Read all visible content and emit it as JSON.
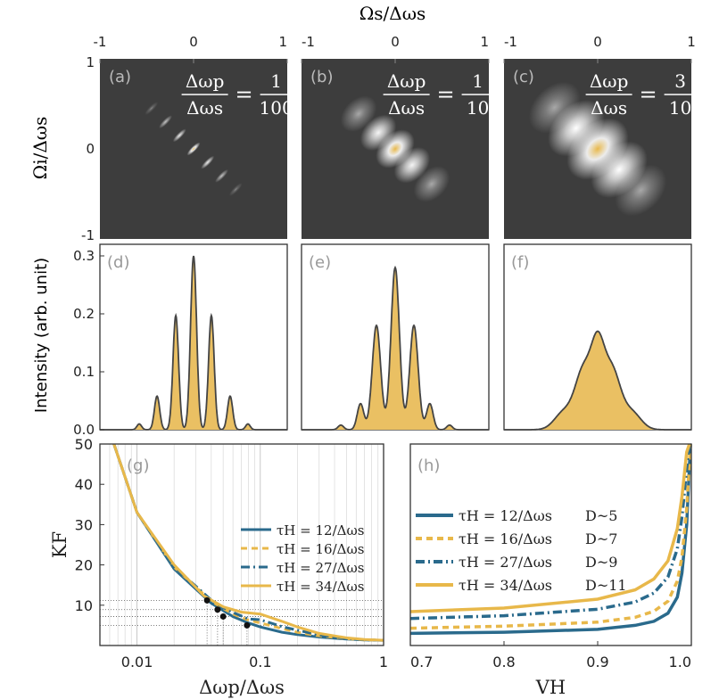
{
  "figure": {
    "top_axis_label": "Ωs/Δωs",
    "left_axis_label": "Ωi/Δωs",
    "intensity_axis_label": "Intensity (arb. unit)"
  },
  "chart_data": [
    {
      "type": "heatmap",
      "panel": "(a)",
      "annotation": "Δωp/Δωs = 1/100",
      "ratio_label": {
        "num": "Δωp",
        "den": "Δωs",
        "value_num": "1",
        "value_den": "100"
      },
      "xlim": [
        -1,
        1
      ],
      "ylim": [
        -1,
        1
      ],
      "x_ticks": [
        "-1",
        "0",
        "1"
      ],
      "y_ticks": [
        "1",
        "0",
        "-1"
      ],
      "background": "#3d3d3d",
      "lobes": [
        {
          "x": -0.45,
          "y": 0.45,
          "w": 0.03,
          "peak": 0.2
        },
        {
          "x": -0.3,
          "y": 0.3,
          "w": 0.03,
          "peak": 0.5
        },
        {
          "x": -0.15,
          "y": 0.15,
          "w": 0.03,
          "peak": 0.7
        },
        {
          "x": 0.0,
          "y": 0.0,
          "w": 0.03,
          "peak": 1.0
        },
        {
          "x": 0.15,
          "y": -0.15,
          "w": 0.03,
          "peak": 0.7
        },
        {
          "x": 0.3,
          "y": -0.3,
          "w": 0.03,
          "peak": 0.5
        },
        {
          "x": 0.45,
          "y": -0.45,
          "w": 0.03,
          "peak": 0.2
        }
      ]
    },
    {
      "type": "heatmap",
      "panel": "(b)",
      "annotation": "Δωp/Δωs = 1/10",
      "ratio_label": {
        "num": "Δωp",
        "den": "Δωs",
        "value_num": "1",
        "value_den": "10"
      },
      "xlim": [
        -1,
        1
      ],
      "ylim": [
        -1,
        1
      ],
      "x_ticks": [
        "-1",
        "0",
        "1"
      ],
      "y_ticks": [],
      "background": "#3d3d3d",
      "lobes": [
        {
          "x": -0.39,
          "y": 0.39,
          "w": 0.07,
          "peak": 0.35
        },
        {
          "x": -0.18,
          "y": 0.18,
          "w": 0.07,
          "peak": 0.75
        },
        {
          "x": 0.0,
          "y": 0.0,
          "w": 0.075,
          "peak": 1.0
        },
        {
          "x": 0.18,
          "y": -0.18,
          "w": 0.07,
          "peak": 0.75
        },
        {
          "x": 0.39,
          "y": -0.39,
          "w": 0.07,
          "peak": 0.35
        }
      ]
    },
    {
      "type": "heatmap",
      "panel": "(c)",
      "annotation": "Δωp/Δωs = 3/10",
      "ratio_label": {
        "num": "Δωp",
        "den": "Δωs",
        "value_num": "3",
        "value_den": "10"
      },
      "xlim": [
        -1,
        1
      ],
      "ylim": [
        -1,
        1
      ],
      "x_ticks": [
        "-1",
        "0",
        "1"
      ],
      "y_ticks": [],
      "background": "#3d3d3d",
      "lobes": [
        {
          "x": -0.46,
          "y": 0.46,
          "w": 0.1,
          "peak": 0.35
        },
        {
          "x": -0.23,
          "y": 0.23,
          "w": 0.11,
          "peak": 0.8
        },
        {
          "x": 0.0,
          "y": 0.0,
          "w": 0.12,
          "peak": 1.0
        },
        {
          "x": 0.23,
          "y": -0.23,
          "w": 0.11,
          "peak": 0.8
        },
        {
          "x": 0.46,
          "y": -0.46,
          "w": 0.1,
          "peak": 0.35
        }
      ]
    },
    {
      "type": "area",
      "panel": "(d)",
      "xlim": [
        -1,
        1
      ],
      "ylim": [
        0,
        0.32
      ],
      "y_ticks": [
        0.0,
        0.1,
        0.2,
        0.3
      ],
      "ylabel": "Intensity (arb. unit)",
      "peaks": [
        {
          "x": -0.58,
          "y": 0.01,
          "w": 0.025
        },
        {
          "x": -0.39,
          "y": 0.058,
          "w": 0.028
        },
        {
          "x": -0.19,
          "y": 0.197,
          "w": 0.03
        },
        {
          "x": 0.0,
          "y": 0.3,
          "w": 0.032
        },
        {
          "x": 0.19,
          "y": 0.197,
          "w": 0.03
        },
        {
          "x": 0.39,
          "y": 0.058,
          "w": 0.028
        },
        {
          "x": 0.58,
          "y": 0.01,
          "w": 0.025
        }
      ]
    },
    {
      "type": "area",
      "panel": "(e)",
      "xlim": [
        -1,
        1
      ],
      "ylim": [
        0,
        0.32
      ],
      "peaks": [
        {
          "x": -0.58,
          "y": 0.008,
          "w": 0.03
        },
        {
          "x": -0.37,
          "y": 0.045,
          "w": 0.035
        },
        {
          "x": -0.2,
          "y": 0.18,
          "w": 0.045
        },
        {
          "x": 0.0,
          "y": 0.28,
          "w": 0.045
        },
        {
          "x": 0.2,
          "y": 0.18,
          "w": 0.045
        },
        {
          "x": 0.37,
          "y": 0.045,
          "w": 0.035
        },
        {
          "x": 0.58,
          "y": 0.008,
          "w": 0.03
        }
      ]
    },
    {
      "type": "area",
      "panel": "(f)",
      "xlim": [
        -1,
        1
      ],
      "ylim": [
        0,
        0.32
      ],
      "peaks": [
        {
          "x": -0.36,
          "y": 0.03,
          "w": 0.1
        },
        {
          "x": -0.15,
          "y": 0.1,
          "w": 0.09
        },
        {
          "x": 0.0,
          "y": 0.12,
          "w": 0.07
        },
        {
          "x": 0.15,
          "y": 0.1,
          "w": 0.09
        },
        {
          "x": 0.36,
          "y": 0.03,
          "w": 0.1
        }
      ]
    },
    {
      "type": "line",
      "panel": "(g)",
      "xlabel": "Δωp/Δωs",
      "ylabel": "KF",
      "xscale": "log",
      "xlim": [
        0.005,
        1
      ],
      "ylim": [
        0,
        50
      ],
      "x_ticks": [
        0.01,
        0.1,
        1
      ],
      "x_tick_labels": [
        "0.01",
        "0.1",
        "1"
      ],
      "y_ticks": [
        10,
        20,
        30,
        40,
        50
      ],
      "legend": "right",
      "series": [
        {
          "name": "τH = 12/Δωs",
          "color": "#2a6a8c",
          "dash": "solid",
          "x": [
            0.0065,
            0.01,
            0.02,
            0.04,
            0.06,
            0.08,
            0.1,
            0.15,
            0.2,
            0.3,
            0.5,
            0.7,
            1.0
          ],
          "y": [
            50,
            33,
            19,
            10.5,
            7.2,
            5.6,
            4.6,
            3.3,
            2.7,
            2.1,
            1.6,
            1.4,
            1.3
          ]
        },
        {
          "name": "τH = 16/Δωs",
          "color": "#e8b84a",
          "dash": "dashed",
          "x": [
            0.0065,
            0.01,
            0.02,
            0.04,
            0.06,
            0.08,
            0.1,
            0.15,
            0.2,
            0.3,
            0.5,
            0.7,
            1.0
          ],
          "y": [
            50,
            33,
            19.5,
            11,
            7.8,
            6.3,
            5.6,
            4.2,
            3.3,
            2.4,
            1.7,
            1.4,
            1.3
          ]
        },
        {
          "name": "τH = 27/Δωs",
          "color": "#2a6a8c",
          "dash": "dashdot",
          "x": [
            0.0065,
            0.01,
            0.02,
            0.04,
            0.05,
            0.06,
            0.08,
            0.1,
            0.15,
            0.2,
            0.3,
            0.5,
            0.7,
            1.0
          ],
          "y": [
            50,
            33,
            19.5,
            11.3,
            9.4,
            8.2,
            6.6,
            6.4,
            4.7,
            3.8,
            2.6,
            1.8,
            1.4,
            1.3
          ]
        },
        {
          "name": "τH = 34/Δωs",
          "color": "#e8b84a",
          "dash": "solid",
          "x": [
            0.0065,
            0.01,
            0.02,
            0.035,
            0.05,
            0.07,
            0.1,
            0.15,
            0.2,
            0.3,
            0.5,
            0.7,
            1.0
          ],
          "y": [
            50,
            33,
            20,
            12.3,
            9.6,
            8.3,
            7.8,
            6.0,
            4.6,
            3.0,
            1.9,
            1.5,
            1.3
          ]
        }
      ],
      "markers": [
        {
          "x": 0.037,
          "y": 11.2
        },
        {
          "x": 0.045,
          "y": 8.9
        },
        {
          "x": 0.05,
          "y": 7.2
        },
        {
          "x": 0.078,
          "y": 5.0
        }
      ]
    },
    {
      "type": "line",
      "panel": "(h)",
      "xlabel": "VH",
      "xlim": [
        0.7,
        1.0
      ],
      "ylim": [
        0,
        50
      ],
      "x_ticks": [
        0.7,
        0.8,
        0.9,
        1.0
      ],
      "x_tick_labels": [
        "0.7",
        "0.8",
        "0.9",
        "1.0"
      ],
      "legend": "left",
      "series": [
        {
          "name": "τH = 12/Δωs",
          "extra": "D~5",
          "color": "#2a6a8c",
          "dash": "solid",
          "x": [
            0.7,
            0.8,
            0.9,
            0.94,
            0.96,
            0.975,
            0.985,
            0.99,
            0.995,
            0.999
          ],
          "y": [
            3.0,
            3.3,
            4.0,
            5.0,
            6.0,
            8.0,
            12.0,
            18.0,
            30.0,
            50.0
          ]
        },
        {
          "name": "τH = 16/Δωs",
          "extra": "D~7",
          "color": "#e8b84a",
          "dash": "dashed",
          "x": [
            0.7,
            0.8,
            0.9,
            0.94,
            0.96,
            0.975,
            0.985,
            0.99,
            0.995,
            0.999
          ],
          "y": [
            4.3,
            4.8,
            5.8,
            7.0,
            8.5,
            11.0,
            16.0,
            22.0,
            34.0,
            50.0
          ]
        },
        {
          "name": "τH = 27/Δωs",
          "extra": "D~9",
          "color": "#2a6a8c",
          "dash": "dashdot",
          "x": [
            0.7,
            0.8,
            0.9,
            0.94,
            0.96,
            0.975,
            0.985,
            0.99,
            0.995,
            0.998
          ],
          "y": [
            6.7,
            7.4,
            9.0,
            10.8,
            13.0,
            17.0,
            24.0,
            32.0,
            44.0,
            50.0
          ]
        },
        {
          "name": "τH = 34/Δωs",
          "extra": "D~11",
          "color": "#e8b84a",
          "dash": "solid",
          "x": [
            0.7,
            0.8,
            0.9,
            0.94,
            0.96,
            0.975,
            0.985,
            0.99,
            0.995,
            0.998
          ],
          "y": [
            8.4,
            9.3,
            11.5,
            13.8,
            16.5,
            21.0,
            29.0,
            37.0,
            48.0,
            50.0
          ]
        }
      ]
    }
  ]
}
